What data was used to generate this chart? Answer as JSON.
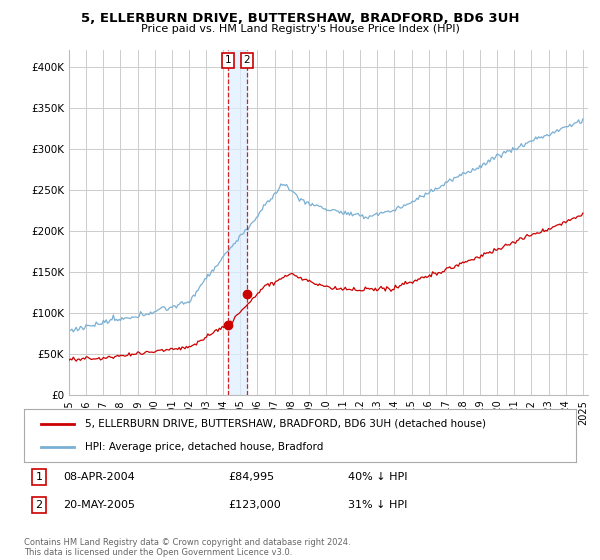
{
  "title1": "5, ELLERBURN DRIVE, BUTTERSHAW, BRADFORD, BD6 3UH",
  "title2": "Price paid vs. HM Land Registry's House Price Index (HPI)",
  "ylabel_ticks": [
    "£0",
    "£50K",
    "£100K",
    "£150K",
    "£200K",
    "£250K",
    "£300K",
    "£350K",
    "£400K"
  ],
  "ytick_values": [
    0,
    50000,
    100000,
    150000,
    200000,
    250000,
    300000,
    350000,
    400000
  ],
  "ylim": [
    0,
    420000
  ],
  "x_start_year": 1995,
  "x_end_year": 2025,
  "sale1_date": "08-APR-2004",
  "sale1_price": 84995,
  "sale1_hpi": "40% ↓ HPI",
  "sale1_label": "1",
  "sale1_x": 2004.27,
  "sale2_date": "20-MAY-2005",
  "sale2_price": 123000,
  "sale2_hpi": "31% ↓ HPI",
  "sale2_label": "2",
  "sale2_x": 2005.38,
  "line_house_color": "#cc0000",
  "line_hpi_color": "#7ab0d4",
  "legend_house_label": "5, ELLERBURN DRIVE, BUTTERSHAW, BRADFORD, BD6 3UH (detached house)",
  "legend_hpi_label": "HPI: Average price, detached house, Bradford",
  "footer": "Contains HM Land Registry data © Crown copyright and database right 2024.\nThis data is licensed under the Open Government Licence v3.0.",
  "background_color": "#ffffff",
  "grid_color": "#cccccc",
  "shade_color": "#ddeeff"
}
